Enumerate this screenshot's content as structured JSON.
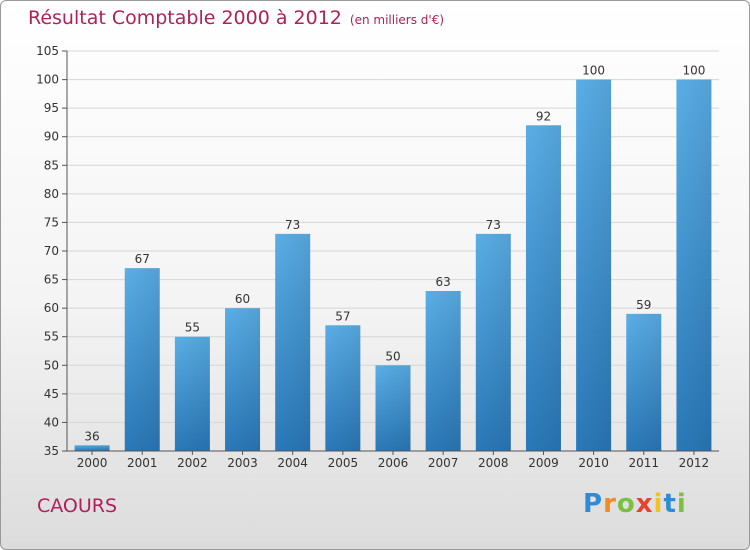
{
  "title": "Résultat Comptable 2000 à 2012",
  "subtitle": "(en milliers d'€)",
  "commune": "CAOURS",
  "brand": [
    "P",
    "r",
    "o",
    "x",
    "i",
    "t",
    "i"
  ],
  "colors": {
    "bar_top": "#5aaee6",
    "bar_bottom": "#2a78b8",
    "title": "#b0205a",
    "grid": "#d6d6d6"
  },
  "chart_data": {
    "type": "bar",
    "categories": [
      "2000",
      "2001",
      "2002",
      "2003",
      "2004",
      "2005",
      "2006",
      "2007",
      "2008",
      "2009",
      "2010",
      "2011",
      "2012"
    ],
    "values": [
      36,
      67,
      55,
      60,
      73,
      57,
      50,
      63,
      73,
      92,
      100,
      59,
      100
    ],
    "data_labels": [
      "36",
      "67",
      "55",
      "60",
      "73",
      "57",
      "50",
      "63",
      "73",
      "92",
      "100",
      "59",
      "100"
    ],
    "ylim": [
      35,
      105
    ],
    "yticks": [
      35,
      40,
      45,
      50,
      55,
      60,
      65,
      70,
      75,
      80,
      85,
      90,
      95,
      100,
      105
    ],
    "grid": true
  }
}
